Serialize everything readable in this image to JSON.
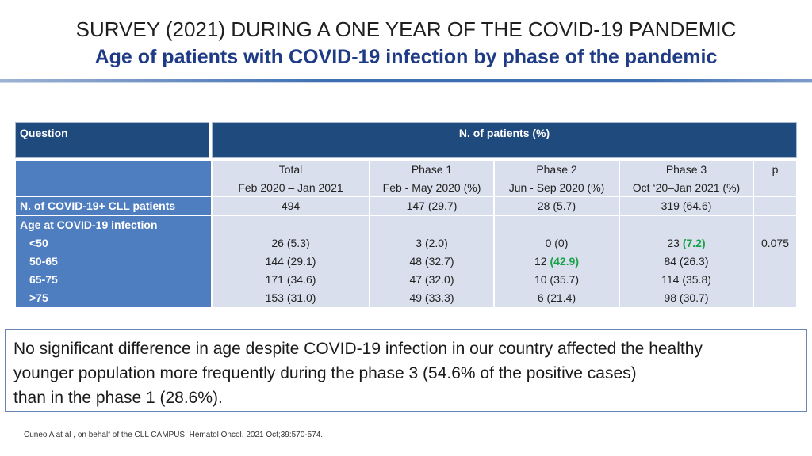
{
  "title": {
    "line1": "SURVEY (2021) DURING A ONE YEAR OF THE COVID-19 PANDEMIC",
    "line2": "Age of patients with COVID-19 infection by phase of the pandemic"
  },
  "table": {
    "header_question": "Question",
    "header_patients": "N. of patients (%)",
    "columns": [
      {
        "name": "Total",
        "period": "Feb 2020 – Jan 2021"
      },
      {
        "name": "Phase 1",
        "period": "Feb -  May 2020 (%)"
      },
      {
        "name": "Phase 2",
        "period": "Jun - Sep 2020 (%)"
      },
      {
        "name": "Phase 3",
        "period": "Oct ‘20–Jan 2021 (%)"
      }
    ],
    "p_header": "p",
    "patients_row": {
      "label": "N. of COVID-19+ CLL patients",
      "values": [
        "494",
        "147 (29.7)",
        "28 (5.7)",
        "319 (64.6)"
      ]
    },
    "age_group": {
      "label": "Age at COVID-19 infection",
      "rows": [
        {
          "label": "<50",
          "values": [
            "26 (5.3)",
            "3 (2.0)",
            "0 (0)",
            "23 "
          ],
          "phase3_highlight": "(7.2)"
        },
        {
          "label": "50-65",
          "values": [
            "144 (29.1)",
            "48 (32.7)",
            "12 ",
            "84 (26.3)"
          ],
          "phase2_highlight": "(42.9)"
        },
        {
          "label": "65-75",
          "values": [
            "171 (34.6)",
            "47 (32.0)",
            "10 (35.7)",
            "114 (35.8)"
          ]
        },
        {
          "label": ">75",
          "values": [
            "153 (31.0)",
            "49 (33.3)",
            "6 (21.4)",
            "98 (30.7)"
          ]
        }
      ],
      "p_value": "0.075"
    }
  },
  "note": {
    "line1": "No significant difference in age despite COVID-19 infection in our country affected the healthy",
    "line2": "younger population more frequently during the phase 3  (54.6% of the positive cases)",
    "line3": "than in the phase 1 (28.6%)."
  },
  "citation": "Cuneo A at al , on behalf of the CLL CAMPUS. Hematol Oncol. 2021 Oct;39:570-574.",
  "colors": {
    "title_blue": "#1f3b85",
    "header_dark": "#1f4a7e",
    "label_blue": "#4f7ec0",
    "cell_light": "#d9dfec",
    "highlight_green": "#1aa14a"
  }
}
